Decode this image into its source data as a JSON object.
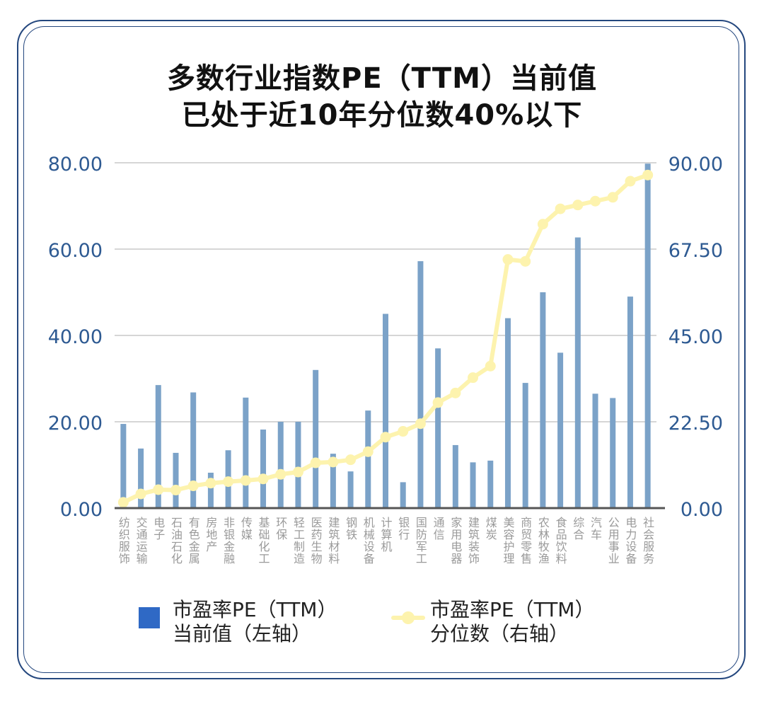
{
  "chart_data": {
    "type": "bar",
    "title": [
      "多数行业指数PE（TTM）当前值",
      "已处于近10年分位数40%以下"
    ],
    "categories": [
      "纺织服饰",
      "交通运输",
      "电子",
      "石油石化",
      "有色金属",
      "房地产",
      "非银金融",
      "传媒",
      "基础化工",
      "环保",
      "轻工制造",
      "医药生物",
      "建筑材料",
      "钢铁",
      "机械设备",
      "计算机",
      "银行",
      "国防军工",
      "通信",
      "家用电器",
      "建筑装饰",
      "煤炭",
      "美容护理",
      "商贸零售",
      "农林牧渔",
      "食品饮料",
      "综合",
      "汽车",
      "公用事业",
      "电力设备",
      "社会服务"
    ],
    "series": [
      {
        "name": "市盈率PE（TTM）当前值（左轴）",
        "type": "bar",
        "axis": "left",
        "color": "#7ba2c8",
        "values": [
          19.5,
          13.8,
          28.5,
          12.8,
          26.8,
          8.2,
          13.4,
          25.6,
          18.2,
          20.0,
          20.0,
          32.0,
          12.6,
          8.5,
          22.6,
          45.0,
          6.0,
          57.2,
          37.0,
          14.6,
          10.6,
          11.0,
          44.0,
          29.0,
          50.0,
          36.0,
          62.7,
          26.5,
          25.5,
          49.0,
          79.8
        ]
      },
      {
        "name": "市盈率PE（TTM）分位数（右轴）",
        "type": "line",
        "axis": "right",
        "color": "#fdf3ae",
        "values": [
          1.5,
          3.7,
          4.8,
          4.7,
          5.8,
          6.5,
          6.9,
          7.2,
          7.6,
          8.8,
          9.4,
          11.8,
          12.0,
          12.6,
          14.7,
          18.5,
          20.0,
          22.0,
          27.5,
          30.0,
          34.0,
          37.0,
          64.8,
          64.3,
          74.0,
          78.0,
          79.0,
          80.0,
          81.0,
          85.2,
          86.8
        ]
      }
    ],
    "y_left": {
      "min": 0,
      "max": 80,
      "ticks": [
        "0.00",
        "20.00",
        "40.00",
        "60.00",
        "80.00"
      ]
    },
    "y_right": {
      "min": 0,
      "max": 90,
      "ticks": [
        "0.00",
        "22.50",
        "45.00",
        "67.50",
        "90.00"
      ]
    },
    "grid": true,
    "legend_position": "bottom"
  },
  "colors": {
    "bar": "#7ba2c8",
    "legend_bar_swatch": "#2f69c5",
    "line": "#fdf3ae",
    "axis_text": "#2e5a92",
    "category_text": "#9a9a9a",
    "grid": "#c8c8c8",
    "frame": "#24477e"
  },
  "legend": {
    "bar_label_line1": "市盈率PE（TTM）",
    "bar_label_line2": "当前值（左轴）",
    "line_label_line1": "市盈率PE（TTM）",
    "line_label_line2": "分位数（右轴）"
  }
}
